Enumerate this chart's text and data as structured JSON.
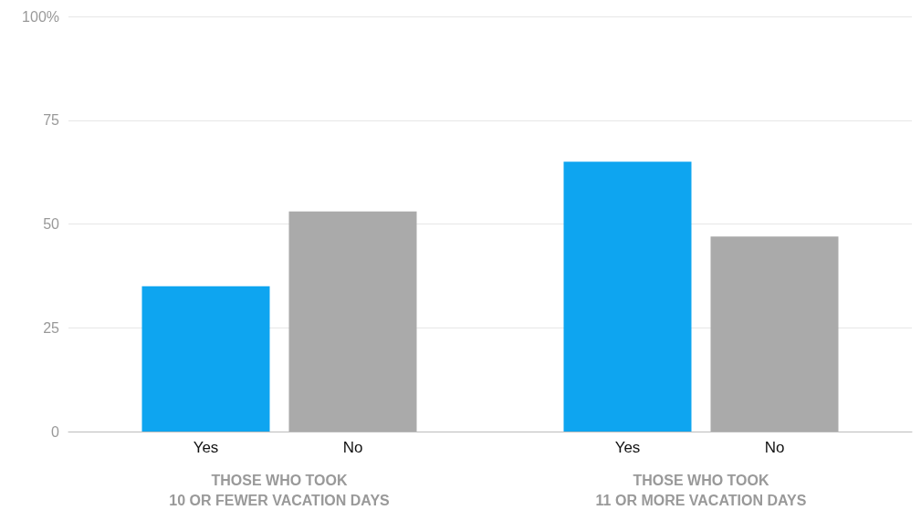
{
  "chart_data": {
    "type": "bar",
    "categories": [
      "THOSE WHO TOOK\n10 OR FEWER VACATION DAYS",
      "THOSE WHO TOOK\n11 OR MORE VACATION DAYS"
    ],
    "series": [
      {
        "name": "Yes",
        "color": "#0ea5f0",
        "values": [
          35,
          65
        ]
      },
      {
        "name": "No",
        "color": "#aaaaaa",
        "values": [
          53,
          47
        ]
      }
    ],
    "ylim": [
      0,
      100
    ],
    "yticks": [
      0,
      25,
      50,
      75,
      {
        "value": 100,
        "label": "100%"
      }
    ],
    "grid": "y",
    "legend": false
  }
}
